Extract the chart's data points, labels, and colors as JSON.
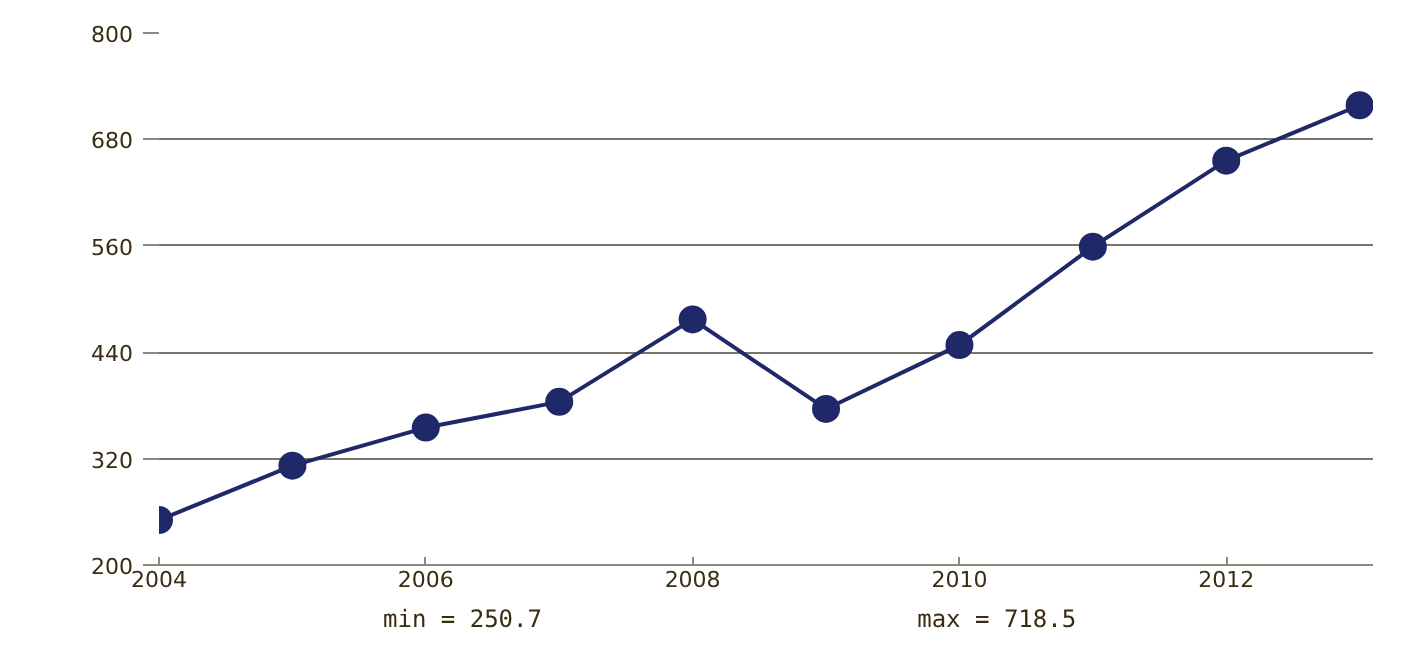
{
  "chart_data": {
    "type": "line",
    "x": [
      2004,
      2005,
      2006,
      2007,
      2008,
      2009,
      2010,
      2011,
      2012,
      2013
    ],
    "series": [
      {
        "color": "#1f2868",
        "values": [
          250.7,
          312,
          355,
          384,
          477,
          376,
          448,
          559,
          656,
          718.5
        ]
      }
    ],
    "xlim": [
      2004,
      2013.1
    ],
    "xticks": [
      2004,
      2006,
      2008,
      2010,
      2012
    ],
    "ylim": [
      200,
      800
    ],
    "yticks": [
      200,
      320,
      440,
      560,
      680,
      800
    ],
    "grid": "y",
    "marker": "circle",
    "line_style": "solid",
    "annotations": [
      "min = 250.7",
      "max = 718.5"
    ]
  }
}
